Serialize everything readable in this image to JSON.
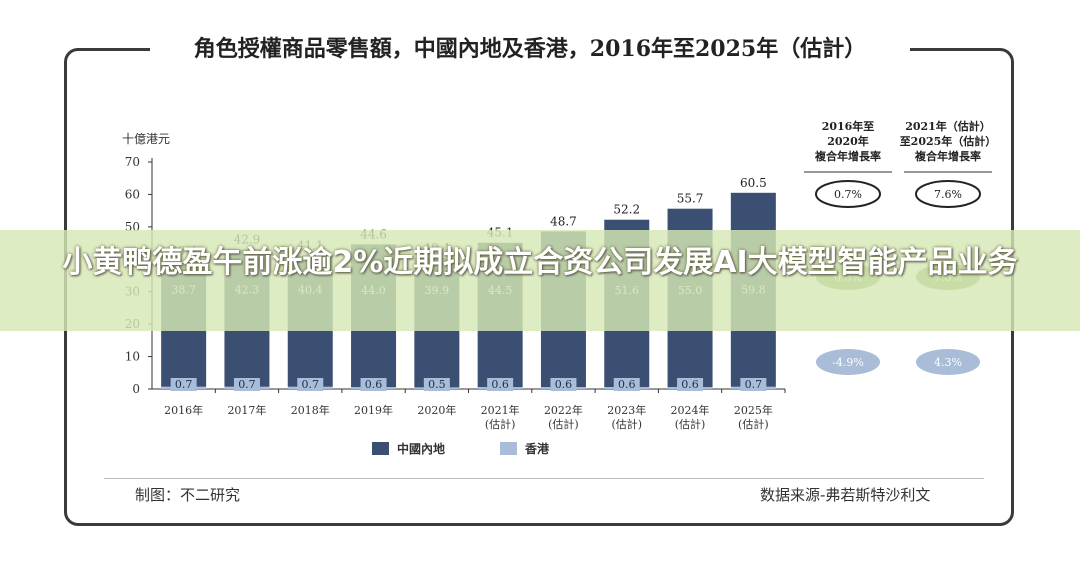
{
  "title": "角色授權商品零售額，中國內地及香港，2016年至2025年（估計）",
  "banner": "小黄鸭德盈午前涨逾2%近期拟成立合资公司发展AI大模型智能产品业务",
  "footer": {
    "left": "制图：不二研究",
    "right": "数据来源-弗若斯特沙利文"
  },
  "cagr": {
    "headers": [
      [
        "2016年至",
        "2020年",
        "複合年增長率"
      ],
      [
        "2021年（估計）",
        "至2025年（估計）",
        "複合年增長率"
      ]
    ],
    "rows": [
      {
        "values": [
          "0.7%",
          "7.6%"
        ],
        "style": "outline"
      },
      {
        "values": [
          "0.8%",
          "7.8%"
        ],
        "style": "filled-green"
      },
      {
        "values": [
          "-4.9%",
          "4.3%"
        ],
        "style": "filled-blue"
      }
    ]
  },
  "chart_data": {
    "type": "bar",
    "stacked": true,
    "ylabel": "十億港元",
    "ylim": [
      0,
      70
    ],
    "yticks": [
      0,
      10,
      20,
      30,
      40,
      50,
      60,
      70
    ],
    "categories": [
      "2016年",
      "2017年",
      "2018年",
      "2019年",
      "2020年",
      "2021年\n(估計)",
      "2022年\n(估計)",
      "2023年\n(估計)",
      "2024年\n(估計)",
      "2025年\n(估計)"
    ],
    "series": [
      {
        "name": "中國內地",
        "color": "#3b4f72",
        "values": [
          38.7,
          42.3,
          40.4,
          44.0,
          39.9,
          44.5,
          48.0,
          51.6,
          55.0,
          59.8
        ]
      },
      {
        "name": "香港",
        "color": "#a9bcd8",
        "values": [
          0.7,
          0.7,
          0.7,
          0.6,
          0.5,
          0.6,
          0.6,
          0.6,
          0.6,
          0.7
        ]
      }
    ],
    "totals": [
      "39.4",
      "42.9",
      "41.1",
      "44.6",
      "40.4",
      "45.1",
      "48.7",
      "52.2",
      "55.7",
      "60.5"
    ],
    "mainland_labels": [
      "38.7",
      "42.3",
      "40.4",
      "44.0",
      "39.9",
      "44.5",
      "",
      "51.6",
      "55.0",
      "59.8"
    ],
    "hk_labels": [
      "0.7",
      "0.7",
      "0.7",
      "0.6",
      "0.5",
      "0.6",
      "0.6",
      "0.6",
      "0.6",
      "0.7"
    ],
    "legend": [
      "中國內地",
      "香港"
    ],
    "legend_position": "bottom"
  }
}
